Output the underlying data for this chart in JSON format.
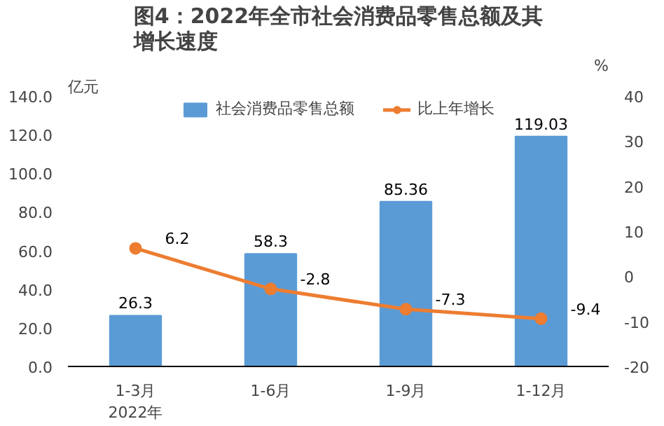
{
  "chart_data": {
    "type": "bar",
    "title": "图4：2022年全市社会消费品零售总额及其增长速度",
    "categories": [
      "1-3月\n2022年",
      "1-6月",
      "1-9月",
      "1-12月"
    ],
    "ylabel": "亿元",
    "y2label": "%",
    "ylim": [
      0,
      140
    ],
    "yticks": [
      {
        "value": 0,
        "label": "0.0"
      },
      {
        "value": 20,
        "label": "20.0"
      },
      {
        "value": 40,
        "label": "40.0"
      },
      {
        "value": 60,
        "label": "60.0"
      },
      {
        "value": 80,
        "label": "80.0"
      },
      {
        "value": 100,
        "label": "100.0"
      },
      {
        "value": 120,
        "label": "120.0"
      },
      {
        "value": 140,
        "label": "140.0"
      }
    ],
    "y2lim": [
      -20,
      40
    ],
    "y2ticks": [
      -20,
      -10,
      0,
      10,
      20,
      30,
      40
    ],
    "series": [
      {
        "name": "社会消费品零售总额",
        "color": "#5b9bd5",
        "values": [
          26.3,
          58.3,
          85.36,
          119.03
        ]
      },
      {
        "name": "比上年增长",
        "type": "line",
        "axis": "y2",
        "color": "#ed7d31",
        "values": [
          6.2,
          -2.8,
          -7.3,
          -9.4
        ]
      }
    ],
    "data_labels": true,
    "legend": "top",
    "grid": false,
    "marker": "circle",
    "line_style": "solid"
  }
}
